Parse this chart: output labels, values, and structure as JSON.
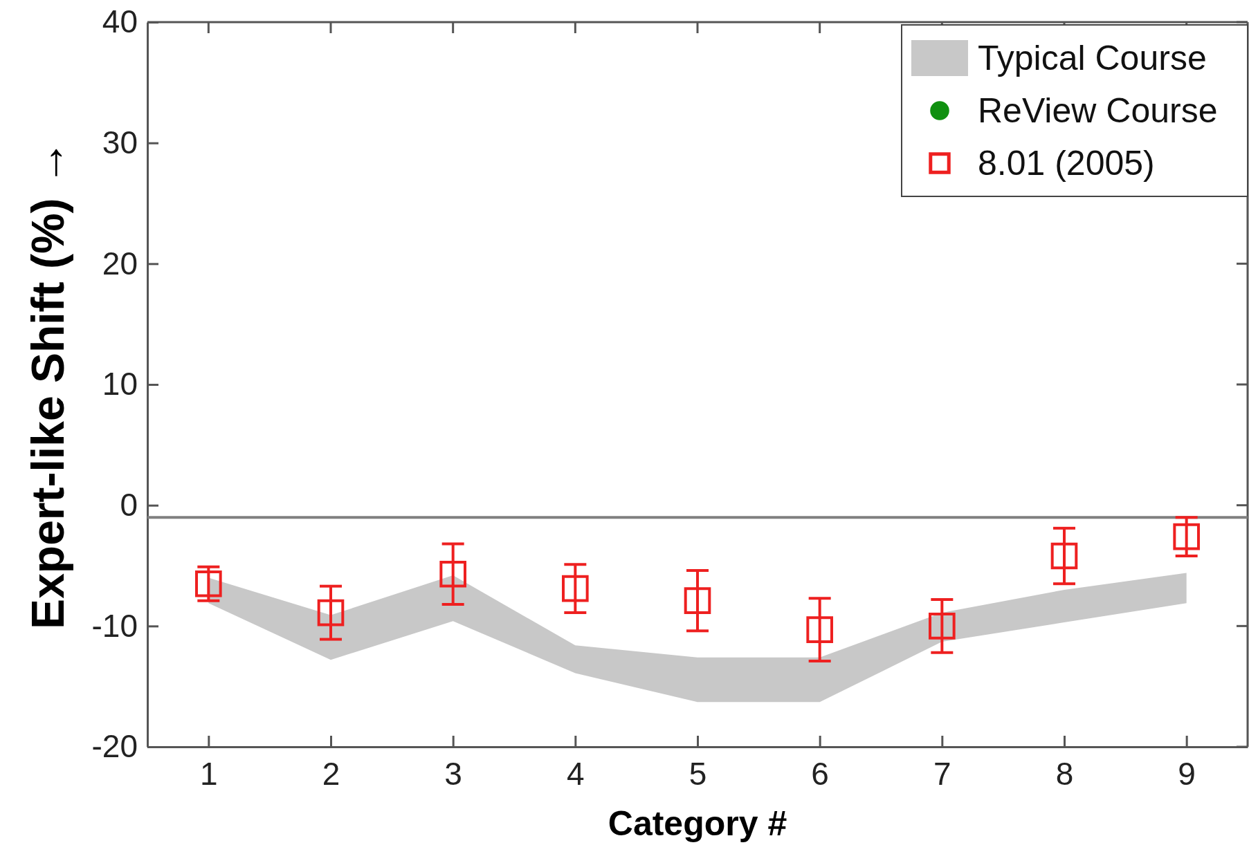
{
  "chart_data": {
    "type": "scatter",
    "ylabel": "Expert-like Shift  (%) →",
    "xlabel": "Category #",
    "categories": [
      "1",
      "2",
      "3",
      "4",
      "5",
      "6",
      "7",
      "8",
      "9"
    ],
    "ylim": [
      -20,
      40
    ],
    "yticks": [
      -20,
      -10,
      0,
      10,
      20,
      30,
      40
    ],
    "grid": false,
    "legend": "top right",
    "ref_lines": [
      {
        "axis": "y",
        "value": -1,
        "color": "#808080"
      }
    ],
    "series": [
      {
        "name": "Typical Course",
        "type": "line",
        "color": "#c8c8c8",
        "values": [
          null,
          null,
          null,
          null,
          null,
          null,
          null,
          null,
          null
        ],
        "lower": [
          -8.1,
          -12.8,
          -9.6,
          -13.9,
          -16.3,
          -16.3,
          -11.3,
          -9.7,
          -8.1
        ],
        "upper": [
          -6,
          -9.1,
          -5.8,
          -11.6,
          -12.6,
          -12.6,
          -8.9,
          -7,
          -5.6
        ]
      },
      {
        "name": "ReView Course",
        "marker": "circle",
        "color": "#109010",
        "values": [
          null,
          null,
          null,
          null,
          null,
          null,
          null,
          null,
          null
        ]
      },
      {
        "name": "8.01  (2005)",
        "marker": "square",
        "color": "#ee2020",
        "values": [
          -6.5,
          -8.9,
          -5.7,
          -6.9,
          -7.9,
          -10.3,
          -10,
          -4.2,
          -2.6
        ],
        "errors": [
          1.4,
          2.2,
          2.5,
          2,
          2.5,
          2.6,
          2.2,
          2.3,
          1.6
        ]
      }
    ]
  }
}
